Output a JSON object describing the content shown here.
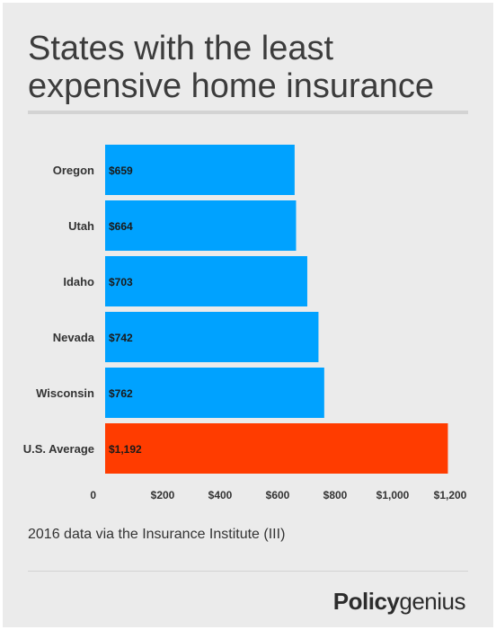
{
  "header": {
    "title_line1": "States with the least",
    "title_line2": "expensive home insurance"
  },
  "footer": {
    "source": "2016 data via the Insurance Institute (III)",
    "brand_bold": "Policy",
    "brand_regular": "genius"
  },
  "colors": {
    "bar": "#00a2ff",
    "highlight": "#ff3c00",
    "background": "#ebebeb",
    "text": "#333333"
  },
  "chart_data": {
    "type": "bar",
    "orientation": "horizontal",
    "categories": [
      "Oregon",
      "Utah",
      "Idaho",
      "Nevada",
      "Wisconsin",
      "U.S. Average"
    ],
    "values": [
      659,
      664,
      703,
      742,
      762,
      1192
    ],
    "data_labels": [
      "$659",
      "$664",
      "$703",
      "$742",
      "$762",
      "$1,192"
    ],
    "highlight_category": "U.S. Average",
    "xlim": [
      0,
      1250
    ],
    "x_ticks": [
      0,
      200,
      400,
      600,
      800,
      1000,
      1200
    ],
    "x_tick_labels": [
      "0",
      "$200",
      "$400",
      "$600",
      "$800",
      "$1,000",
      "$1,200"
    ],
    "grid": false,
    "legend": "none"
  }
}
